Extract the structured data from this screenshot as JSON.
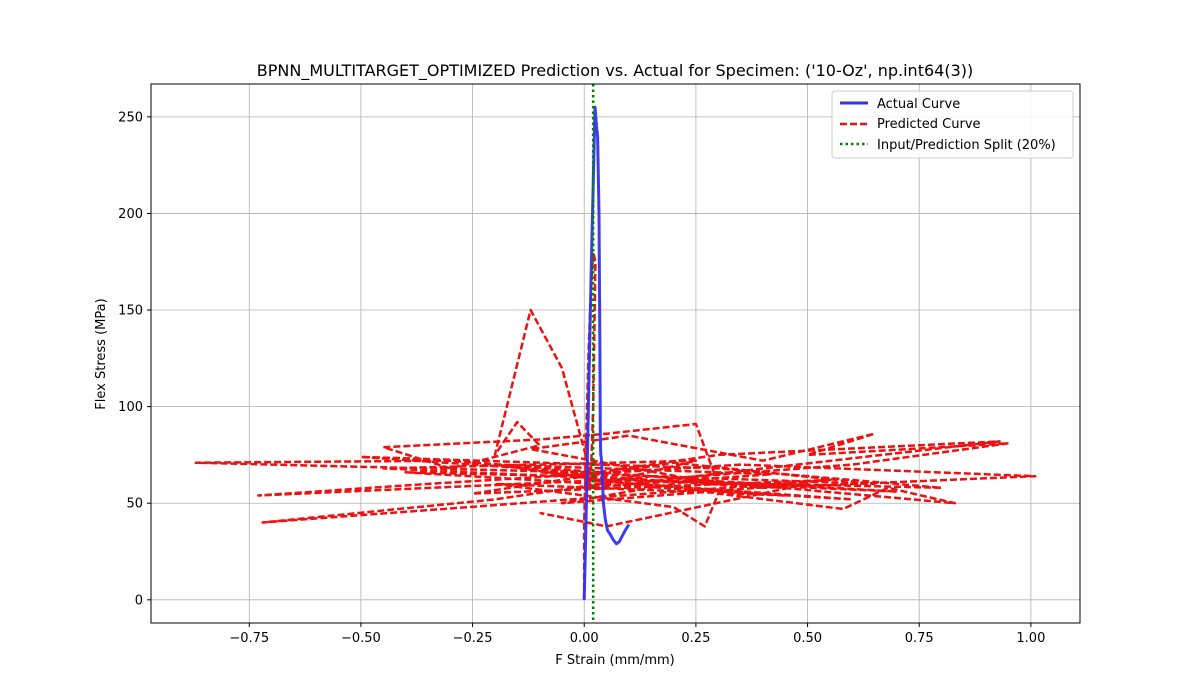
{
  "chart_data": {
    "type": "line",
    "title": "BPNN_MULTITARGET_OPTIMIZED Prediction vs. Actual for Specimen: ('10-Oz', np.int64(3))",
    "xlabel": "F Strain (mm/mm)",
    "ylabel": "Flex Stress (MPa)",
    "xlim": [
      -0.97,
      1.11
    ],
    "ylim": [
      -12,
      267
    ],
    "xticks": [
      -0.75,
      -0.5,
      -0.25,
      0.0,
      0.25,
      0.5,
      0.75,
      1.0
    ],
    "xtick_labels": [
      "−0.75",
      "−0.50",
      "−0.25",
      "0.00",
      "0.25",
      "0.50",
      "0.75",
      "1.00"
    ],
    "yticks": [
      0,
      50,
      100,
      150,
      200,
      250
    ],
    "ytick_labels": [
      "0",
      "50",
      "100",
      "150",
      "200",
      "250"
    ],
    "grid": true,
    "legend_position": "top-right",
    "split_x": 0.02,
    "series": [
      {
        "name": "Actual Curve",
        "color": "#3333ee",
        "style": "solid",
        "x": [
          0.0,
          0.004,
          0.008,
          0.012,
          0.016,
          0.02,
          0.024,
          0.026,
          0.028,
          0.03,
          0.033,
          0.035,
          0.036,
          0.037,
          0.038,
          0.04,
          0.043,
          0.047,
          0.052,
          0.058,
          0.065,
          0.072,
          0.078,
          0.085,
          0.092,
          0.1
        ],
        "y": [
          0,
          40,
          85,
          130,
          175,
          215,
          255,
          250,
          244,
          240,
          200,
          130,
          85,
          75,
          74,
          66,
          50,
          42,
          36,
          34,
          31,
          29,
          30,
          33,
          36,
          39
        ]
      },
      {
        "name": "Predicted Curve",
        "color": "#ee1111",
        "style": "dashed",
        "x": [
          0.0,
          0.0,
          0.005,
          0.01,
          0.015,
          0.02,
          0.025,
          0.02,
          0.015,
          -0.05,
          -0.12,
          -0.2,
          -0.15,
          -0.1,
          -0.3,
          -0.45,
          -0.1,
          0.05,
          0.25,
          0.3,
          -0.12,
          0.1,
          0.4,
          0.65,
          0.5,
          0.95,
          0.6,
          0.2,
          -0.3,
          -0.87,
          0.0,
          -0.5,
          0.3,
          0.8,
          0.05,
          -0.73,
          -0.35,
          0.35,
          1.01,
          0.4,
          -0.1,
          0.65,
          0.2,
          -0.25,
          0.55,
          -0.72,
          -0.2,
          0.15,
          0.83,
          0.68,
          0.58,
          0.3,
          0.27,
          0.2,
          -0.2,
          0.45,
          0.0,
          0.6,
          -0.4,
          -0.03,
          0.3,
          0.93,
          0.1,
          -0.2,
          0.42,
          0.0,
          0.25,
          -0.45,
          0.7,
          0.25,
          -0.05,
          0.5,
          0.05,
          -0.1
        ],
        "y": [
          0,
          40,
          90,
          130,
          160,
          180,
          175,
          100,
          65,
          120,
          150,
          75,
          92,
          80,
          68,
          79,
          83,
          86,
          91,
          60,
          78,
          85,
          72,
          86,
          75,
          81,
          70,
          63,
          72,
          71,
          66,
          74,
          68,
          58,
          62,
          54,
          60,
          70,
          64,
          58,
          66,
          60,
          71,
          55,
          62,
          40,
          52,
          64,
          50,
          58,
          47,
          55,
          38,
          48,
          60,
          54,
          62,
          52,
          66,
          64,
          75,
          82,
          60,
          70,
          65,
          58,
          72,
          68,
          56,
          62,
          50,
          60,
          38,
          45
        ]
      },
      {
        "name": "Input/Prediction Split (20%)",
        "color": "#008000",
        "style": "dotted"
      }
    ]
  }
}
